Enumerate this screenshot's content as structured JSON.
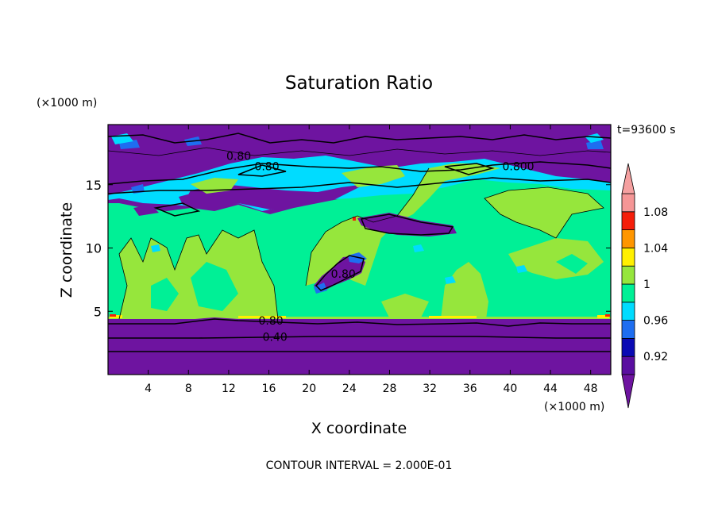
{
  "chart_data": {
    "type": "heatmap",
    "title": "Saturation Ratio",
    "xlabel": "X coordinate",
    "ylabel": "Z coordinate",
    "x_unit": "(×1000 m)",
    "y_unit": "(×1000 m)",
    "time_label": "t=93600 s",
    "footer": "CONTOUR INTERVAL = 2.000E-01",
    "xlim": [
      0,
      50
    ],
    "ylim": [
      0,
      19.75
    ],
    "x_ticks": [
      4,
      8,
      12,
      16,
      20,
      24,
      28,
      32,
      36,
      40,
      44,
      48
    ],
    "y_ticks": [
      5,
      10,
      15
    ],
    "contour_labels": [
      {
        "text": "0.80",
        "x": 16.2,
        "y": 4.2
      },
      {
        "text": "0.40",
        "x": 16.6,
        "y": 2.9
      },
      {
        "text": "0.80",
        "x": 15.8,
        "y": 16.4
      },
      {
        "text": "0.80",
        "x": 13.0,
        "y": 17.2
      },
      {
        "text": "0.800",
        "x": 40.8,
        "y": 16.4
      },
      {
        "text": "0.80",
        "x": 23.4,
        "y": 7.9
      }
    ],
    "colorbar": {
      "levels": [
        0.9,
        0.92,
        0.94,
        0.96,
        0.98,
        1.0,
        1.02,
        1.04,
        1.06,
        1.08,
        1.1
      ],
      "tick_labels": [
        "0.92",
        "0.96",
        "1",
        "1.04",
        "1.08"
      ],
      "colors": [
        "#5a0ea0",
        "#0a0ab4",
        "#1e6ef0",
        "#00dcff",
        "#00f096",
        "#96e63c",
        "#fff000",
        "#ff9600",
        "#f51e0a",
        "#f59696"
      ],
      "under_color": "#6e14a0",
      "over_color": "#f5a0a0"
    },
    "regions": [
      {
        "level": "below 0.80",
        "z": [
          0,
          4.3
        ],
        "color": "#6e14a0"
      },
      {
        "level": "0.98-1.00",
        "z": [
          4.3,
          14.5
        ],
        "color": "#00f096"
      },
      {
        "level": "1.00-1.02",
        "z": [
          4.3,
          14.5
        ],
        "color": "#96e63c"
      },
      {
        "level": "0.94-0.98",
        "z": [
          13.0,
          17.5
        ],
        "color": "#00dcff"
      },
      {
        "level": "below 0.80",
        "z": [
          14.5,
          19.75
        ],
        "color": "#6e14a0"
      }
    ]
  }
}
